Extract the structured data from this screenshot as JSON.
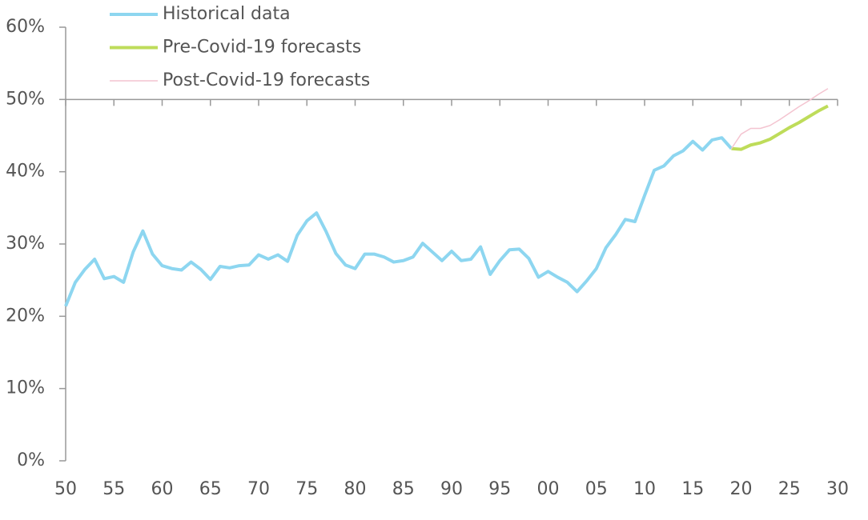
{
  "chart_data": {
    "type": "line",
    "xlim": [
      1950,
      2030
    ],
    "xticks": [
      {
        "value": 1950,
        "label": "50"
      },
      {
        "value": 1955,
        "label": "55"
      },
      {
        "value": 1960,
        "label": "60"
      },
      {
        "value": 1965,
        "label": "65"
      },
      {
        "value": 1970,
        "label": "70"
      },
      {
        "value": 1975,
        "label": "75"
      },
      {
        "value": 1980,
        "label": "80"
      },
      {
        "value": 1985,
        "label": "85"
      },
      {
        "value": 1990,
        "label": "90"
      },
      {
        "value": 1995,
        "label": "95"
      },
      {
        "value": 2000,
        "label": "00"
      },
      {
        "value": 2005,
        "label": "05"
      },
      {
        "value": 2010,
        "label": "10"
      },
      {
        "value": 2015,
        "label": "15"
      },
      {
        "value": 2020,
        "label": "20"
      },
      {
        "value": 2025,
        "label": "25"
      },
      {
        "value": 2030,
        "label": "30"
      }
    ],
    "ylim": [
      0,
      60
    ],
    "yticks": [
      {
        "value": 0,
        "label": "0%"
      },
      {
        "value": 10,
        "label": "10%"
      },
      {
        "value": 20,
        "label": "20%"
      },
      {
        "value": 30,
        "label": "30%"
      },
      {
        "value": 40,
        "label": "40%"
      },
      {
        "value": 50,
        "label": "50%"
      },
      {
        "value": 60,
        "label": "60%"
      }
    ],
    "x_axis_crosses": 50,
    "grid": false,
    "legend": "top",
    "series": [
      {
        "name": "Historical data",
        "color": "#8dd6f0",
        "width": 4,
        "x": [
          1950,
          1951,
          1952,
          1953,
          1954,
          1955,
          1956,
          1957,
          1958,
          1959,
          1960,
          1961,
          1962,
          1963,
          1964,
          1965,
          1966,
          1967,
          1968,
          1969,
          1970,
          1971,
          1972,
          1973,
          1974,
          1975,
          1976,
          1977,
          1978,
          1979,
          1980,
          1981,
          1982,
          1983,
          1984,
          1985,
          1986,
          1987,
          1988,
          1989,
          1990,
          1991,
          1992,
          1993,
          1994,
          1995,
          1996,
          1997,
          1998,
          1999,
          2000,
          2001,
          2002,
          2003,
          2004,
          2005,
          2006,
          2007,
          2008,
          2009,
          2010,
          2011,
          2012,
          2013,
          2014,
          2015,
          2016,
          2017,
          2018,
          2019
        ],
        "values": [
          21.4,
          24.7,
          26.5,
          27.9,
          25.2,
          25.5,
          24.7,
          28.9,
          31.8,
          28.6,
          27.0,
          26.6,
          26.4,
          27.5,
          26.5,
          25.1,
          26.9,
          26.7,
          27.0,
          27.1,
          28.5,
          27.9,
          28.5,
          27.6,
          31.2,
          33.2,
          34.3,
          31.7,
          28.7,
          27.1,
          26.6,
          28.6,
          28.6,
          28.2,
          27.5,
          27.7,
          28.2,
          30.1,
          28.9,
          27.7,
          29.0,
          27.7,
          27.9,
          29.6,
          25.8,
          27.7,
          29.2,
          29.3,
          28.0,
          25.4,
          26.2,
          25.4,
          24.7,
          23.4,
          24.9,
          26.6,
          29.5,
          31.3,
          33.4,
          33.1,
          36.7,
          40.2,
          40.8,
          42.2,
          42.9,
          44.2,
          43.0,
          44.4,
          44.7,
          43.2
        ]
      },
      {
        "name": "Pre-Covid-19 forecasts",
        "color": "#bedc5a",
        "width": 4,
        "x": [
          2019,
          2020,
          2021,
          2022,
          2023,
          2024,
          2025,
          2026,
          2027,
          2028,
          2029
        ],
        "values": [
          43.2,
          43.1,
          43.7,
          44.0,
          44.5,
          45.3,
          46.1,
          46.8,
          47.6,
          48.4,
          49.1
        ]
      },
      {
        "name": "Post-Covid-19 forecasts",
        "color": "#f4c4d0",
        "width": 1.5,
        "x": [
          2019,
          2020,
          2021,
          2022,
          2023,
          2024,
          2025,
          2026,
          2027,
          2028,
          2029
        ],
        "values": [
          43.2,
          45.2,
          46.0,
          46.0,
          46.4,
          47.2,
          48.1,
          49.0,
          49.8,
          50.7,
          51.5
        ]
      }
    ]
  }
}
